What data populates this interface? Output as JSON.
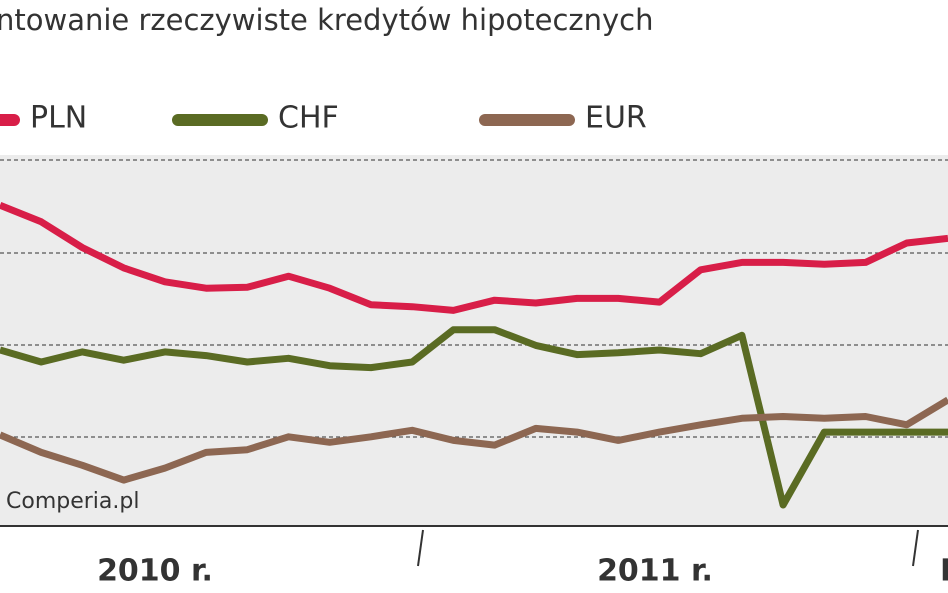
{
  "chart_data": {
    "type": "line",
    "title": "ntowanie rzeczywiste kredytów hipotecznych",
    "source": "Comperia.pl",
    "period_labels": [
      "2010 r.",
      "2011 r.",
      "I"
    ],
    "categories": [
      null,
      null,
      null,
      null,
      null,
      null,
      null,
      null,
      null,
      null,
      null,
      null,
      null,
      null,
      null,
      null,
      null,
      null,
      null,
      null,
      null,
      null,
      null,
      null
    ],
    "ylim": [
      0,
      4
    ],
    "series": [
      {
        "name": "PLN",
        "color": "#d81e48",
        "values": [
          3.51,
          3.33,
          3.05,
          2.83,
          2.68,
          2.61,
          2.62,
          2.74,
          2.61,
          2.43,
          2.41,
          2.37,
          2.48,
          2.45,
          2.5,
          2.5,
          2.46,
          2.81,
          2.89,
          2.89,
          2.87,
          2.89,
          3.1,
          3.15
        ]
      },
      {
        "name": "CHF",
        "color": "#5a6b23",
        "values": [
          1.94,
          1.81,
          1.92,
          1.83,
          1.92,
          1.88,
          1.81,
          1.85,
          1.77,
          1.75,
          1.81,
          2.16,
          2.16,
          1.99,
          1.89,
          1.91,
          1.94,
          1.9,
          2.1,
          0.26,
          1.05,
          1.05,
          1.05,
          1.05
        ]
      },
      {
        "name": "EUR",
        "color": "#8d6752",
        "values": [
          1.02,
          0.83,
          0.69,
          0.53,
          0.66,
          0.83,
          0.86,
          1.0,
          0.94,
          1.0,
          1.07,
          0.96,
          0.91,
          1.09,
          1.05,
          0.96,
          1.05,
          1.13,
          1.2,
          1.22,
          1.2,
          1.22,
          1.13,
          1.4
        ]
      }
    ]
  }
}
